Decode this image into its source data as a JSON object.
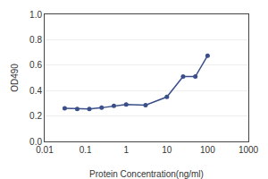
{
  "chart_data": {
    "type": "line",
    "x": [
      0.031,
      0.063,
      0.125,
      0.25,
      0.5,
      1.0,
      3.0,
      10.0,
      25.0,
      50.0,
      100.0
    ],
    "values": [
      0.26,
      0.255,
      0.255,
      0.265,
      0.28,
      0.29,
      0.285,
      0.35,
      0.51,
      0.51,
      0.675
    ],
    "color": "#3a4f8a",
    "marker": "circle",
    "xlabel": "Protein Concentration(ng/ml)",
    "ylabel": "OD490",
    "log": "x",
    "xlim": [
      0.01,
      1000
    ],
    "ylim": [
      0.0,
      1.0
    ],
    "xticks": [
      0.01,
      0.1,
      1,
      10,
      100,
      1000
    ],
    "yticks": [
      {
        "value": 0.0,
        "label": "0.0"
      },
      0.2,
      0.4,
      0.6,
      0.8,
      {
        "value": 1.0,
        "label": "1.0"
      }
    ],
    "grid": "y"
  }
}
